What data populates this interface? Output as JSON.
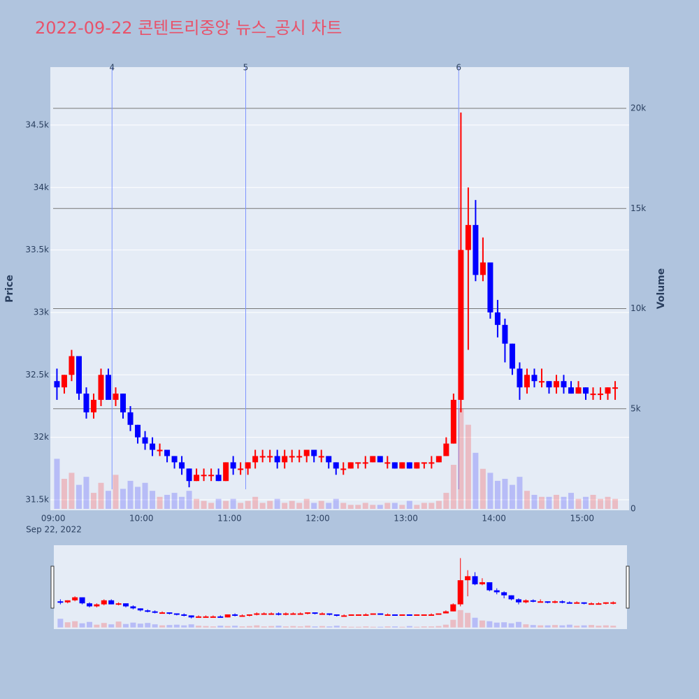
{
  "chart_data": {
    "type": "candlestick",
    "title": "2022-09-22 콘텐트리중앙 뉴스_공시 차트",
    "y_title": "Price",
    "y2_title": "Volume",
    "x_sublabel": "Sep 22, 2022",
    "increasing_color": "#ff0000",
    "decreasing_color": "#0000ff",
    "x": [
      "09:00",
      "09:05",
      "09:10",
      "09:15",
      "09:20",
      "09:25",
      "09:30",
      "09:35",
      "09:40",
      "09:45",
      "09:50",
      "09:55",
      "10:00",
      "10:05",
      "10:10",
      "10:15",
      "10:20",
      "10:25",
      "10:30",
      "10:35",
      "10:40",
      "10:45",
      "10:50",
      "10:55",
      "11:00",
      "11:05",
      "11:10",
      "11:15",
      "11:20",
      "11:25",
      "11:30",
      "11:35",
      "11:40",
      "11:45",
      "11:50",
      "11:55",
      "12:00",
      "12:05",
      "12:10",
      "12:15",
      "12:20",
      "12:25",
      "12:30",
      "12:35",
      "12:40",
      "12:45",
      "12:50",
      "12:55",
      "13:00",
      "13:05",
      "13:10",
      "13:15",
      "13:20",
      "13:25",
      "13:30",
      "13:35",
      "13:40",
      "13:45",
      "13:50",
      "13:55",
      "14:00",
      "14:05",
      "14:10",
      "14:15",
      "14:20",
      "14:25",
      "14:30",
      "14:35",
      "14:40",
      "14:45",
      "14:50",
      "14:55",
      "15:00",
      "15:05",
      "15:10",
      "15:15",
      "15:20"
    ],
    "open": [
      32450,
      32400,
      32500,
      32650,
      32350,
      32200,
      32300,
      32500,
      32300,
      32350,
      32200,
      32100,
      32000,
      31950,
      31900,
      31900,
      31850,
      31800,
      31750,
      31650,
      31700,
      31700,
      31700,
      31650,
      31800,
      31750,
      31750,
      31800,
      31850,
      31850,
      31850,
      31800,
      31850,
      31850,
      31850,
      31900,
      31850,
      31850,
      31800,
      31750,
      31750,
      31800,
      31800,
      31800,
      31850,
      31800,
      31800,
      31750,
      31800,
      31750,
      31800,
      31800,
      31800,
      31850,
      31950,
      32300,
      33500,
      33700,
      33300,
      33400,
      33000,
      32900,
      32750,
      32550,
      32400,
      32500,
      32450,
      32450,
      32400,
      32450,
      32400,
      32350,
      32400,
      32350,
      32350,
      32350,
      32400
    ],
    "high": [
      32550,
      32500,
      32700,
      32650,
      32400,
      32350,
      32550,
      32550,
      32400,
      32350,
      32250,
      32100,
      32050,
      32000,
      31950,
      31900,
      31850,
      31850,
      31750,
      31750,
      31750,
      31750,
      31750,
      31800,
      31850,
      31800,
      31800,
      31900,
      31900,
      31900,
      31900,
      31900,
      31900,
      31900,
      31900,
      31900,
      31900,
      31850,
      31800,
      31800,
      31800,
      31800,
      31850,
      31850,
      31850,
      31850,
      31800,
      31800,
      31800,
      31800,
      31800,
      31850,
      31850,
      32000,
      32350,
      34600,
      34000,
      33900,
      33600,
      33400,
      33100,
      32950,
      32750,
      32600,
      32550,
      32550,
      32550,
      32450,
      32500,
      32500,
      32450,
      32450,
      32400,
      32400,
      32400,
      32400,
      32450
    ],
    "low": [
      32300,
      32350,
      32450,
      32300,
      32150,
      32150,
      32250,
      32300,
      32250,
      32150,
      32050,
      31950,
      31900,
      31850,
      31850,
      31800,
      31750,
      31700,
      31600,
      31650,
      31650,
      31650,
      31650,
      31650,
      31700,
      31700,
      31700,
      31750,
      31800,
      31800,
      31750,
      31750,
      31800,
      31800,
      31800,
      31800,
      31800,
      31750,
      31700,
      31700,
      31750,
      31750,
      31750,
      31800,
      31800,
      31750,
      31750,
      31750,
      31750,
      31750,
      31750,
      31750,
      31800,
      31850,
      31950,
      32200,
      32700,
      33250,
      33250,
      32950,
      32800,
      32600,
      32500,
      32300,
      32350,
      32400,
      32400,
      32350,
      32350,
      32350,
      32350,
      32350,
      32300,
      32300,
      32300,
      32300,
      32300
    ],
    "close": [
      32400,
      32500,
      32650,
      32350,
      32200,
      32300,
      32500,
      32300,
      32350,
      32200,
      32100,
      32000,
      31950,
      31900,
      31900,
      31850,
      31800,
      31750,
      31650,
      31700,
      31700,
      31700,
      31650,
      31800,
      31750,
      31750,
      31800,
      31850,
      31850,
      31850,
      31800,
      31850,
      31850,
      31850,
      31900,
      31850,
      31850,
      31800,
      31750,
      31750,
      31800,
      31800,
      31800,
      31850,
      31800,
      31800,
      31750,
      31800,
      31750,
      31800,
      31800,
      31800,
      31850,
      31950,
      32300,
      33500,
      33700,
      33300,
      33400,
      33000,
      32900,
      32750,
      32550,
      32400,
      32500,
      32450,
      32450,
      32400,
      32450,
      32400,
      32350,
      32400,
      32350,
      32350,
      32350,
      32400,
      32400
    ],
    "volume": [
      2500,
      1500,
      1800,
      1200,
      1600,
      800,
      1300,
      900,
      1700,
      1000,
      1400,
      1100,
      1300,
      900,
      600,
      700,
      800,
      600,
      900,
      500,
      400,
      300,
      500,
      400,
      500,
      300,
      400,
      600,
      300,
      400,
      500,
      300,
      400,
      300,
      500,
      300,
      400,
      300,
      500,
      300,
      200,
      200,
      300,
      200,
      200,
      300,
      300,
      200,
      400,
      200,
      300,
      300,
      400,
      800,
      2200,
      5000,
      4200,
      2800,
      2000,
      1800,
      1400,
      1500,
      1200,
      1600,
      900,
      700,
      600,
      600,
      700,
      600,
      800,
      500,
      600,
      700,
      500,
      600,
      500
    ],
    "xlim": [
      "08:58",
      "15:32"
    ],
    "xticks": [
      "09:00",
      "10:00",
      "11:00",
      "12:00",
      "13:00",
      "14:00",
      "15:00"
    ],
    "ylim": [
      31416,
      34964
    ],
    "yticks": [
      {
        "value": 31500,
        "label": "31.5k"
      },
      {
        "value": 32000,
        "label": "32k"
      },
      {
        "value": 32500,
        "label": "32.5k"
      },
      {
        "value": 33000,
        "label": "33k"
      },
      {
        "value": 33500,
        "label": "33.5k"
      },
      {
        "value": 34000,
        "label": "34k"
      },
      {
        "value": 34500,
        "label": "34.5k"
      }
    ],
    "y2lim": [
      -70,
      22060
    ],
    "y2ticks": [
      0,
      {
        "value": 5000,
        "label": "5k"
      },
      {
        "value": 10000,
        "label": "10k"
      },
      {
        "value": 15000,
        "label": "15k"
      },
      {
        "value": 20000,
        "label": "20k"
      }
    ],
    "events": [
      {
        "x": "09:40",
        "label": "4"
      },
      {
        "x": "11:11",
        "label": "5"
      },
      {
        "x": "13:36",
        "label": "6"
      }
    ],
    "grid": true,
    "rangeslider": true
  }
}
